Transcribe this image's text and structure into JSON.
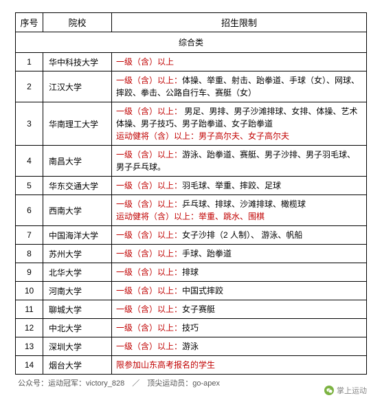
{
  "table": {
    "headers": {
      "num": "序号",
      "school": "院校",
      "restrict": "招生限制"
    },
    "section_label": "综合类",
    "prefix_level1": "一级（含）以上：",
    "prefix_level1_noColon": "一级（含）以上",
    "prefix_special": "运动健将（含）以上：",
    "rows": [
      {
        "num": "1",
        "school": "华中科技大学",
        "segments": [
          {
            "cls": "all-red",
            "text": "一级（含）以上"
          }
        ]
      },
      {
        "num": "2",
        "school": "江汉大学",
        "segments": [
          {
            "cls": "prefix",
            "text": "一级（含）以上："
          },
          {
            "cls": "black-text",
            "text": "体操、举重、射击、跆拳道、手球（女）、网球、摔跤、拳击、公路自行车、赛艇（女）"
          }
        ]
      },
      {
        "num": "3",
        "school": "华南理工大学",
        "segments": [
          {
            "cls": "prefix",
            "text": "一级（含）以上："
          },
          {
            "cls": "black-text",
            "text": " 男足、男排、男子沙滩排球、女排、体操、艺术体操、男子技巧、男子跆拳道、女子跆拳道"
          },
          {
            "br": true
          },
          {
            "cls": "special-prefix",
            "text": "运动健将（含）以上：男子高尔夫、女子高尔夫"
          }
        ]
      },
      {
        "num": "4",
        "school": "南昌大学",
        "segments": [
          {
            "cls": "prefix",
            "text": "一级（含）以上："
          },
          {
            "cls": "black-text",
            "text": "游泳、跆拳道、赛艇、男子沙排、男子羽毛球、男子乒乓球。"
          }
        ]
      },
      {
        "num": "5",
        "school": "华东交通大学",
        "segments": [
          {
            "cls": "prefix",
            "text": "一级（含）以上："
          },
          {
            "cls": "black-text",
            "text": "羽毛球、举重、摔跤、足球"
          }
        ]
      },
      {
        "num": "6",
        "school": "西南大学",
        "segments": [
          {
            "cls": "prefix",
            "text": "一级（含）以上："
          },
          {
            "cls": "black-text",
            "text": "乒乓球、排球、沙滩排球、橄榄球"
          },
          {
            "br": true
          },
          {
            "cls": "special-prefix",
            "text": "运动健将（含）以上：举重、跳水、围棋"
          }
        ]
      },
      {
        "num": "7",
        "school": "中国海洋大学",
        "segments": [
          {
            "cls": "prefix",
            "text": "一级（含）以上："
          },
          {
            "cls": "black-text",
            "text": "女子沙排（2 人制）、 游泳、帆船"
          }
        ]
      },
      {
        "num": "8",
        "school": "苏州大学",
        "segments": [
          {
            "cls": "prefix",
            "text": "一级（含）以上："
          },
          {
            "cls": "black-text",
            "text": "手球、跆拳道"
          }
        ]
      },
      {
        "num": "9",
        "school": "北华大学",
        "segments": [
          {
            "cls": "prefix",
            "text": "一级（含）以上："
          },
          {
            "cls": "black-text",
            "text": "排球"
          }
        ]
      },
      {
        "num": "10",
        "school": "河南大学",
        "segments": [
          {
            "cls": "prefix",
            "text": "一级（含）以上："
          },
          {
            "cls": "black-text",
            "text": "中国式摔跤"
          }
        ]
      },
      {
        "num": "11",
        "school": "聊城大学",
        "segments": [
          {
            "cls": "prefix",
            "text": "一级（含）以上："
          },
          {
            "cls": "black-text",
            "text": "女子赛艇"
          }
        ]
      },
      {
        "num": "12",
        "school": "中北大学",
        "segments": [
          {
            "cls": "prefix",
            "text": "一级（含）以上："
          },
          {
            "cls": "black-text",
            "text": "技巧"
          }
        ]
      },
      {
        "num": "13",
        "school": "深圳大学",
        "segments": [
          {
            "cls": "prefix",
            "text": "一级（含）以上："
          },
          {
            "cls": "black-text",
            "text": "游泳"
          }
        ]
      },
      {
        "num": "14",
        "school": "烟台大学",
        "segments": [
          {
            "cls": "all-red",
            "text": "限参加山东高考报名的学生"
          }
        ]
      }
    ]
  },
  "footer": "公众号：运动冠军：victory_828　／　顶尖运动员：go-apex",
  "watermark": "掌上运动"
}
